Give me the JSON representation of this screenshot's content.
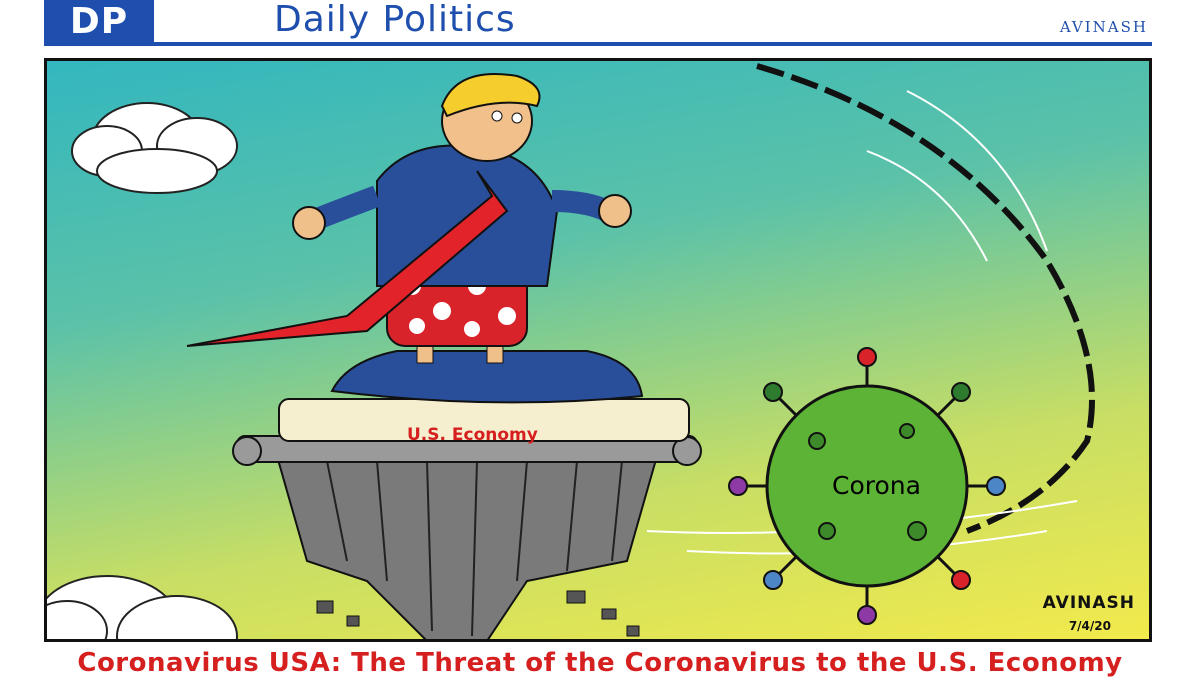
{
  "header": {
    "logo": "DP",
    "title": "Daily Politics",
    "author": "AVINASH"
  },
  "cartoon": {
    "pedestal_label": "U.S. Economy",
    "virus_label": "Corona",
    "signature": "AVINASH",
    "date": "7/4/20"
  },
  "caption": "Coronavirus USA: The Threat of the Coronavirus to the U.S. Economy",
  "colors": {
    "brand_blue": "#1f4fae",
    "caption_red": "#d61f1f",
    "virus_green": "#5db336"
  }
}
